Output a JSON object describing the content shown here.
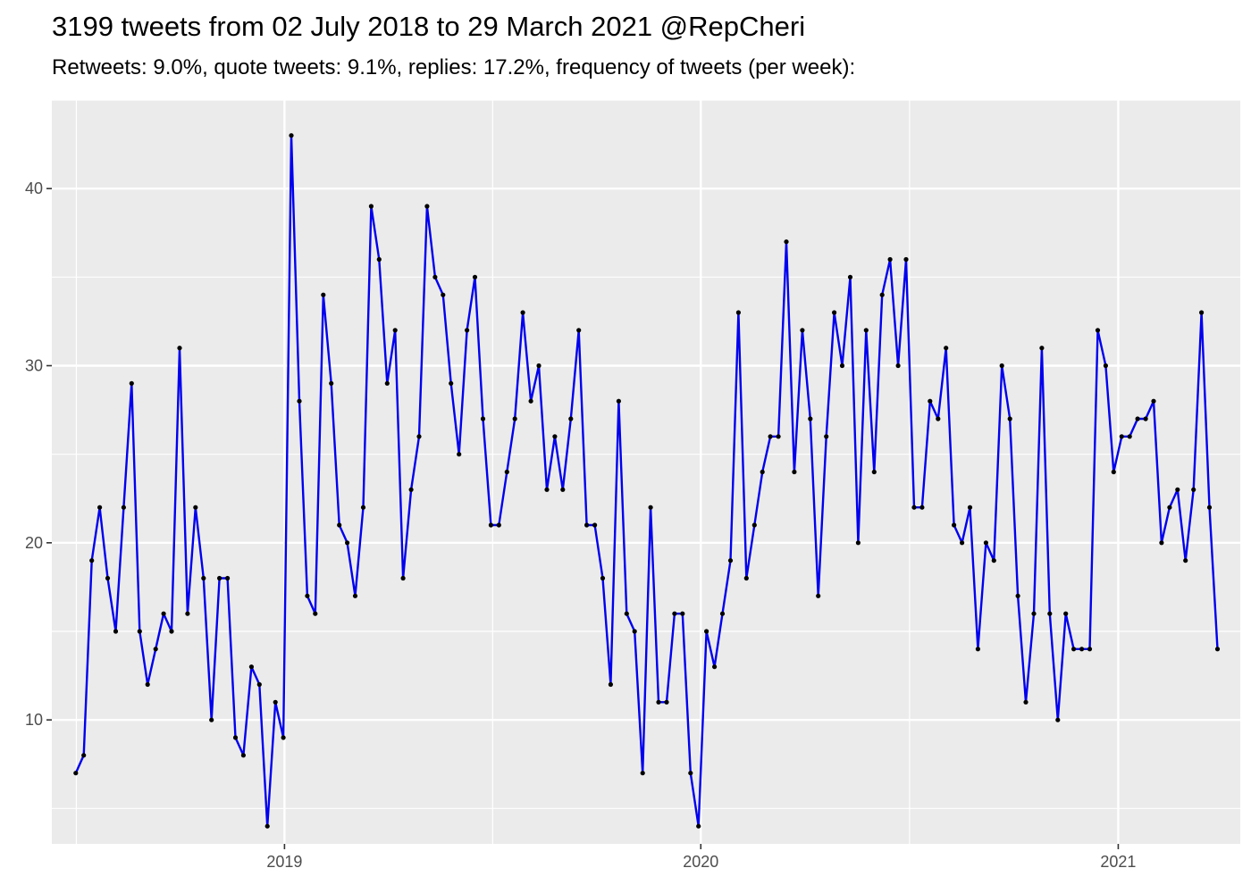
{
  "chart_data": {
    "type": "line",
    "title": "3199 tweets from 02 July 2018 to 29 March 2021 @RepCheri",
    "subtitle": "Retweets: 9.0%, quote tweets: 9.1%, replies: 17.2%, frequency of tweets (per week):",
    "xlabel": "",
    "ylabel": "",
    "x_start": "2018-07-02",
    "x_step_days": 7,
    "xlim": [
      "2018-06-11",
      "2021-04-18"
    ],
    "ylim": [
      3.0,
      45.0
    ],
    "x_ticks": [
      {
        "label": "2019",
        "date": "2019-01-01"
      },
      {
        "label": "2020",
        "date": "2020-01-01"
      },
      {
        "label": "2021",
        "date": "2021-01-01"
      }
    ],
    "y_ticks": [
      10,
      20,
      30,
      40
    ],
    "grid": true,
    "line_color": "#0000ee",
    "point_color": "#000000",
    "panel_color": "#ebebeb",
    "values": [
      7,
      8,
      19,
      22,
      18,
      15,
      22,
      29,
      15,
      12,
      14,
      16,
      15,
      31,
      16,
      22,
      18,
      10,
      18,
      18,
      9,
      8,
      13,
      12,
      4,
      11,
      9,
      43,
      28,
      17,
      16,
      34,
      29,
      21,
      20,
      17,
      22,
      39,
      36,
      29,
      32,
      18,
      23,
      26,
      39,
      35,
      34,
      29,
      25,
      32,
      35,
      27,
      21,
      21,
      24,
      27,
      33,
      28,
      30,
      23,
      26,
      23,
      27,
      32,
      21,
      21,
      18,
      12,
      28,
      16,
      15,
      7,
      22,
      11,
      11,
      16,
      16,
      7,
      4,
      15,
      13,
      16,
      19,
      33,
      18,
      21,
      24,
      26,
      26,
      37,
      24,
      32,
      27,
      17,
      26,
      33,
      30,
      35,
      20,
      32,
      24,
      34,
      36,
      30,
      36,
      22,
      22,
      28,
      27,
      31,
      21,
      20,
      22,
      14,
      20,
      19,
      30,
      27,
      17,
      11,
      16,
      31,
      16,
      10,
      16,
      14,
      14,
      14,
      32,
      30,
      24,
      26,
      26,
      27,
      27,
      28,
      20,
      22,
      23,
      19,
      23,
      33,
      22,
      14
    ]
  }
}
